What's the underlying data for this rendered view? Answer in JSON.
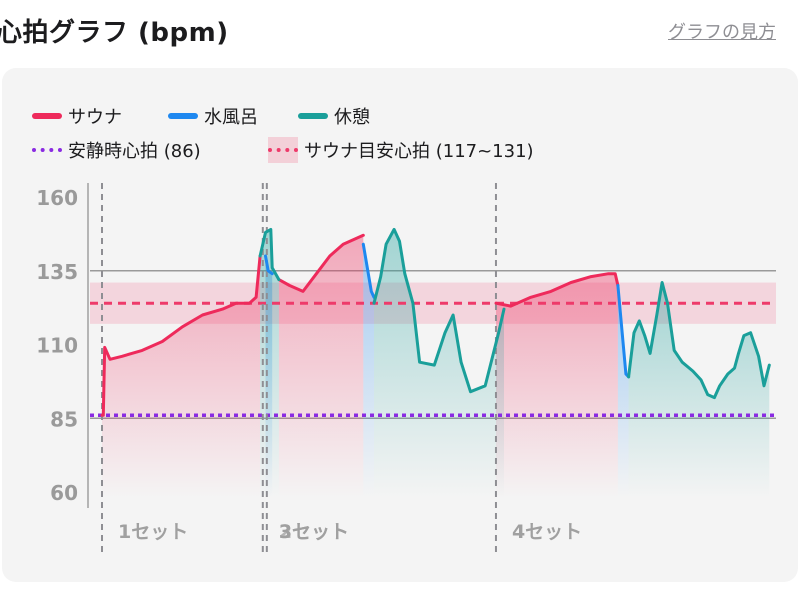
{
  "header": {
    "title": "心拍グラフ (bpm)",
    "help_link": "グラフの見方"
  },
  "legend": {
    "sauna": "サウナ",
    "cold_bath": "水風呂",
    "rest": "休憩",
    "resting_hr": "安静時心拍 (86)",
    "sauna_target": "サウナ目安心拍 (117~131)"
  },
  "colors": {
    "sauna": "#ee2a5b",
    "cold_bath": "#1e88f0",
    "rest": "#1a9f9a",
    "resting_hr": "#8a2be2",
    "target_band": "#f07896",
    "target_line": "#ee3a6a"
  },
  "chart_data": {
    "type": "line",
    "title": "心拍グラフ (bpm)",
    "xlabel": "",
    "ylabel": "bpm",
    "yticks": [
      160,
      135,
      110,
      85,
      60
    ],
    "ylim": [
      60,
      160
    ],
    "resting_hr": 86,
    "sauna_target_range": [
      117,
      131
    ],
    "sauna_target_line": 124,
    "set_labels": [
      "1セット",
      "2セット",
      "3セット",
      "4セット"
    ],
    "series": [
      {
        "name": "サウナ",
        "segments": [
          [
            [
              0,
              86
            ],
            [
              1,
              86
            ],
            [
              2,
              109
            ],
            [
              6,
              105
            ],
            [
              15,
              106
            ],
            [
              30,
              108
            ],
            [
              45,
              111
            ],
            [
              60,
              116
            ],
            [
              75,
              120
            ],
            [
              90,
              122
            ],
            [
              100,
              124
            ],
            [
              110,
              124
            ],
            [
              115,
              126
            ],
            [
              118,
              140
            ]
          ],
          [
            [
              132,
              132
            ],
            [
              140,
              130
            ],
            [
              150,
              128
            ],
            [
              160,
              134
            ],
            [
              170,
              140
            ],
            [
              180,
              144
            ],
            [
              190,
              146
            ],
            [
              195,
              147
            ]
          ],
          [
            [
              294,
              124
            ],
            [
              305,
              123
            ],
            [
              320,
              126
            ],
            [
              335,
              128
            ],
            [
              350,
              131
            ],
            [
              365,
              133
            ],
            [
              378,
              134
            ],
            [
              383,
              134
            ],
            [
              385,
              130
            ]
          ]
        ]
      },
      {
        "name": "水風呂",
        "segments": [
          [
            [
              122,
              140
            ],
            [
              124,
              135
            ],
            [
              127,
              134
            ]
          ],
          [
            [
              195,
              144
            ],
            [
              198,
              136
            ],
            [
              201,
              128
            ],
            [
              203,
              126
            ]
          ],
          [
            [
              385,
              130
            ],
            [
              388,
              115
            ],
            [
              391,
              100
            ],
            [
              393,
              99
            ]
          ]
        ]
      },
      {
        "name": "休憩",
        "segments": [
          [
            [
              118,
              140
            ],
            [
              122,
              148
            ],
            [
              126,
              149
            ],
            [
              127,
              136
            ],
            [
              132,
              132
            ]
          ],
          [
            [
              203,
              124
            ],
            [
              208,
              133
            ],
            [
              212,
              144
            ],
            [
              218,
              149
            ],
            [
              222,
              145
            ],
            [
              226,
              134
            ],
            [
              232,
              124
            ],
            [
              237,
              104
            ],
            [
              248,
              103
            ],
            [
              256,
              114
            ],
            [
              262,
              120
            ],
            [
              268,
              104
            ],
            [
              275,
              94
            ],
            [
              286,
              96
            ],
            [
              291,
              105
            ],
            [
              296,
              114
            ],
            [
              300,
              122
            ]
          ],
          [
            [
              393,
              99
            ],
            [
              397,
              114
            ],
            [
              401,
              118
            ],
            [
              405,
              113
            ],
            [
              409,
              107
            ],
            [
              414,
              120
            ],
            [
              418,
              131
            ],
            [
              422,
              124
            ],
            [
              427,
              108
            ],
            [
              433,
              104
            ],
            [
              441,
              101
            ],
            [
              447,
              98
            ],
            [
              452,
              93
            ],
            [
              457,
              92
            ],
            [
              461,
              96
            ],
            [
              467,
              100
            ],
            [
              472,
              102
            ],
            [
              475,
              107
            ],
            [
              479,
              113
            ],
            [
              484,
              114
            ],
            [
              490,
              106
            ],
            [
              494,
              96
            ],
            [
              498,
              103
            ]
          ]
        ]
      }
    ],
    "set_markers": [
      0,
      120,
      123,
      294
    ],
    "grid": true,
    "legend_position": "top"
  }
}
